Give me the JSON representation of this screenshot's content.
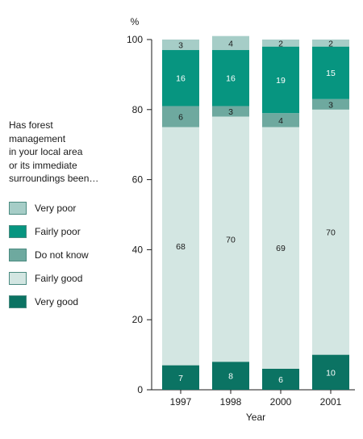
{
  "chart_data": {
    "type": "bar",
    "stacked": true,
    "categories": [
      "1997",
      "1998",
      "2000",
      "2001"
    ],
    "series": [
      {
        "name": "Very good",
        "values": [
          7,
          8,
          6,
          10
        ],
        "color": "#0b7363"
      },
      {
        "name": "Fairly good",
        "values": [
          68,
          70,
          69,
          70
        ],
        "color": "#d3e6e2"
      },
      {
        "name": "Do not know",
        "values": [
          6,
          3,
          4,
          3
        ],
        "color": "#6ea99f"
      },
      {
        "name": "Fairly poor",
        "values": [
          16,
          16,
          19,
          15
        ],
        "color": "#079580"
      },
      {
        "name": "Very poor",
        "values": [
          3,
          4,
          2,
          2
        ],
        "color": "#a6cdc7"
      }
    ],
    "xlabel": "Year",
    "ylabel": "%",
    "ylim": [
      0,
      100
    ],
    "yticks": [
      0,
      20,
      40,
      60,
      80,
      100
    ],
    "legend_title": "Has forest\nmanagement\nin your local area\nor its immediate\nsurroundings been…",
    "legend_order": [
      "Very poor",
      "Fairly poor",
      "Do not know",
      "Fairly good",
      "Very good"
    ],
    "legend_placement": "left",
    "grid": false
  }
}
